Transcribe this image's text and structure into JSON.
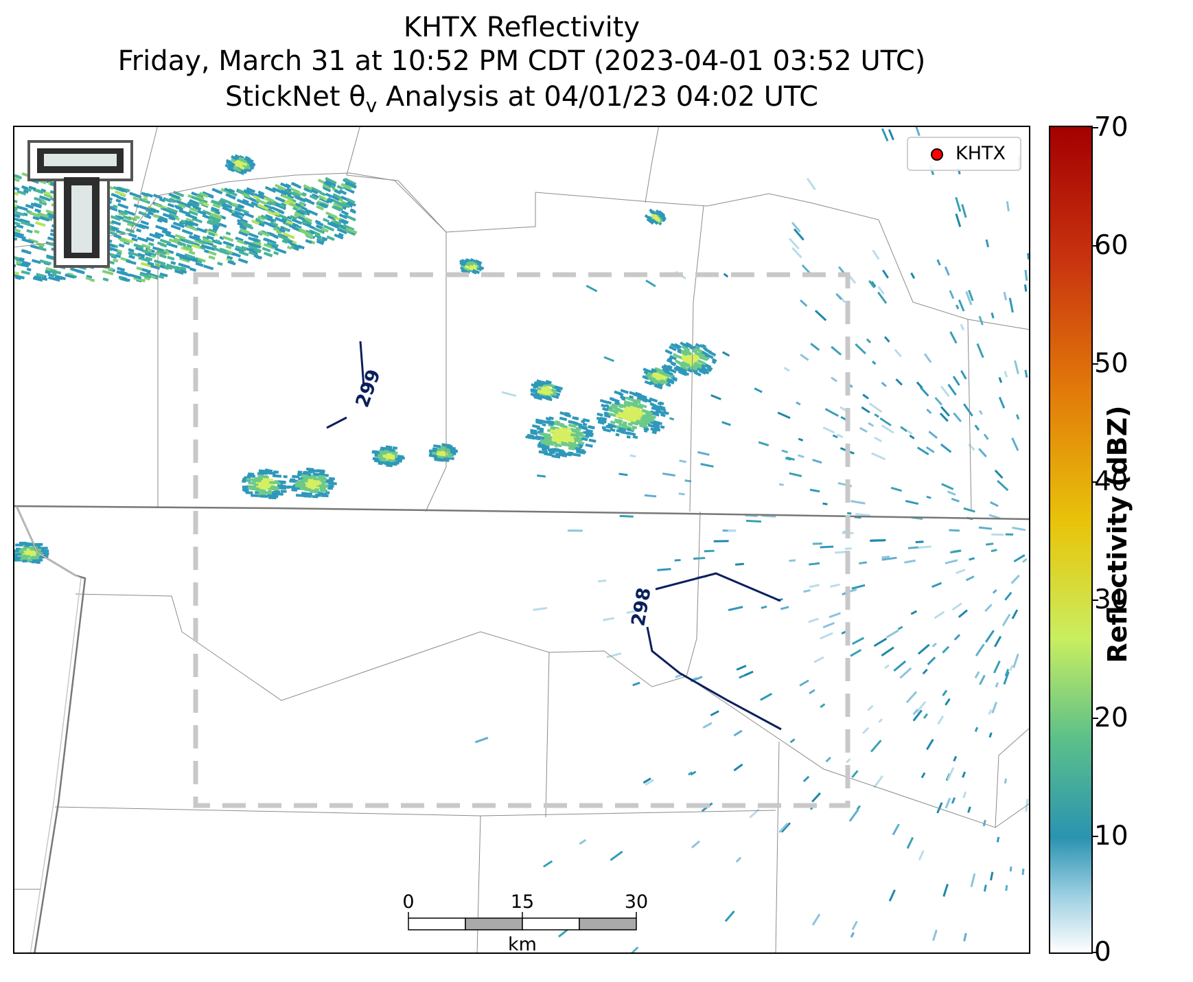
{
  "title": {
    "line1": "KHTX Reflectivity",
    "line2": "Friday, March 31 at 10:52 PM CDT (2023-04-01 03:52 UTC)",
    "line3": "StickNet θ",
    "line3_sub": "v",
    "line3_rest": " Analysis at 04/01/23 04:02 UTC"
  },
  "legend": {
    "label": "KHTX",
    "marker_color": "#ff0000"
  },
  "colorbar": {
    "label": "Reflectivity (dBZ)",
    "ticks": [
      "70",
      "60",
      "50",
      "40",
      "30",
      "20",
      "10",
      "0"
    ],
    "range": [
      0,
      70
    ],
    "colors": [
      "#ffffff",
      "#2a93b0",
      "#5cc08a",
      "#c9ee60",
      "#e8c40a",
      "#e27a0a",
      "#c8330f",
      "#a30000"
    ]
  },
  "contours": [
    {
      "label": "299",
      "color": "#0b1f5c"
    },
    {
      "label": "298",
      "color": "#0b1f5c"
    }
  ],
  "scale_bar": {
    "labels": [
      "0",
      "15",
      "30"
    ],
    "unit": "km"
  },
  "logo": {
    "name": "Texas Tech Double T"
  }
}
